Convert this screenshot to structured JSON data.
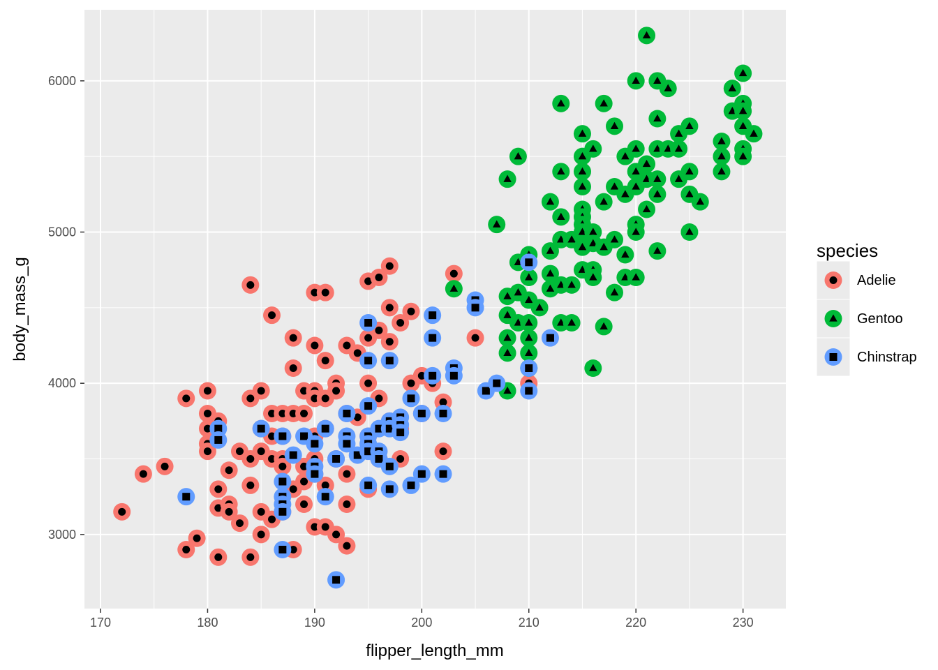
{
  "chart_data": {
    "type": "scatter",
    "xlabel": "flipper_length_mm",
    "ylabel": "body_mass_g",
    "xlim": [
      168.5,
      234
    ],
    "ylim": [
      2510,
      6470
    ],
    "x_ticks": [
      170,
      180,
      190,
      200,
      210,
      220,
      230
    ],
    "y_ticks": [
      3000,
      4000,
      5000,
      6000
    ],
    "x_tick_labels": [
      "170",
      "180",
      "190",
      "200",
      "210",
      "220",
      "230"
    ],
    "y_tick_labels": [
      "3000",
      "4000",
      "5000",
      "6000"
    ],
    "grid": true,
    "legend": {
      "title": "species",
      "position": "right"
    },
    "series": [
      {
        "name": "Adelie",
        "color": "#F8766D",
        "marker": "circle",
        "points": [
          [
            172,
            3150
          ],
          [
            174,
            3400
          ],
          [
            176,
            3450
          ],
          [
            178,
            3900
          ],
          [
            178,
            2900
          ],
          [
            179,
            2975
          ],
          [
            180,
            3950
          ],
          [
            180,
            3800
          ],
          [
            180,
            3700
          ],
          [
            180,
            3600
          ],
          [
            180,
            3550
          ],
          [
            181,
            3750
          ],
          [
            181,
            3300
          ],
          [
            181,
            3175
          ],
          [
            181,
            2850
          ],
          [
            182,
            3425
          ],
          [
            182,
            3200
          ],
          [
            182,
            3150
          ],
          [
            183,
            3550
          ],
          [
            183,
            3075
          ],
          [
            184,
            4650
          ],
          [
            184,
            3900
          ],
          [
            184,
            3500
          ],
          [
            184,
            3325
          ],
          [
            184,
            2850
          ],
          [
            185,
            3950
          ],
          [
            185,
            3700
          ],
          [
            185,
            3550
          ],
          [
            185,
            3150
          ],
          [
            185,
            3000
          ],
          [
            186,
            4450
          ],
          [
            186,
            3800
          ],
          [
            186,
            3650
          ],
          [
            186,
            3500
          ],
          [
            186,
            3100
          ],
          [
            187,
            3800
          ],
          [
            187,
            3650
          ],
          [
            187,
            3500
          ],
          [
            187,
            3450
          ],
          [
            187,
            3150
          ],
          [
            188,
            4300
          ],
          [
            188,
            4100
          ],
          [
            188,
            3800
          ],
          [
            188,
            3300
          ],
          [
            188,
            2900
          ],
          [
            189,
            3950
          ],
          [
            189,
            3800
          ],
          [
            189,
            3450
          ],
          [
            189,
            3350
          ],
          [
            189,
            3200
          ],
          [
            190,
            4600
          ],
          [
            190,
            4250
          ],
          [
            190,
            3950
          ],
          [
            190,
            3900
          ],
          [
            190,
            3650
          ],
          [
            190,
            3500
          ],
          [
            190,
            3400
          ],
          [
            190,
            3050
          ],
          [
            191,
            4600
          ],
          [
            191,
            4150
          ],
          [
            191,
            3900
          ],
          [
            191,
            3700
          ],
          [
            191,
            3325
          ],
          [
            191,
            3050
          ],
          [
            192,
            4000
          ],
          [
            192,
            3950
          ],
          [
            192,
            3500
          ],
          [
            192,
            3000
          ],
          [
            193,
            4250
          ],
          [
            193,
            3800
          ],
          [
            193,
            3400
          ],
          [
            193,
            3200
          ],
          [
            193,
            2925
          ],
          [
            194,
            4200
          ],
          [
            194,
            3775
          ],
          [
            195,
            4675
          ],
          [
            195,
            4300
          ],
          [
            195,
            4000
          ],
          [
            195,
            3650
          ],
          [
            195,
            3300
          ],
          [
            196,
            4700
          ],
          [
            196,
            4350
          ],
          [
            196,
            3900
          ],
          [
            196,
            3500
          ],
          [
            197,
            4775
          ],
          [
            197,
            4500
          ],
          [
            197,
            4275
          ],
          [
            197,
            3750
          ],
          [
            198,
            4400
          ],
          [
            198,
            3700
          ],
          [
            198,
            3500
          ],
          [
            199,
            4475
          ],
          [
            199,
            4000
          ],
          [
            200,
            4050
          ],
          [
            200,
            3800
          ],
          [
            201,
            4000
          ],
          [
            202,
            3875
          ],
          [
            202,
            3550
          ],
          [
            203,
            4725
          ],
          [
            205,
            4300
          ],
          [
            210,
            4000
          ]
        ]
      },
      {
        "name": "Gentoo",
        "color": "#00BA38",
        "marker": "triangle",
        "points": [
          [
            203,
            4625
          ],
          [
            207,
            5050
          ],
          [
            208,
            5350
          ],
          [
            208,
            4575
          ],
          [
            208,
            4450
          ],
          [
            208,
            4300
          ],
          [
            208,
            4200
          ],
          [
            208,
            3950
          ],
          [
            209,
            5500
          ],
          [
            209,
            4800
          ],
          [
            209,
            4600
          ],
          [
            209,
            4400
          ],
          [
            210,
            4850
          ],
          [
            210,
            4700
          ],
          [
            210,
            4550
          ],
          [
            210,
            4400
          ],
          [
            210,
            4300
          ],
          [
            210,
            4200
          ],
          [
            210,
            4100
          ],
          [
            211,
            4500
          ],
          [
            212,
            5200
          ],
          [
            212,
            4875
          ],
          [
            212,
            4725
          ],
          [
            212,
            4625
          ],
          [
            213,
            5850
          ],
          [
            213,
            5400
          ],
          [
            213,
            5100
          ],
          [
            213,
            4950
          ],
          [
            213,
            4650
          ],
          [
            213,
            4400
          ],
          [
            214,
            4950
          ],
          [
            214,
            4650
          ],
          [
            214,
            4400
          ],
          [
            215,
            5650
          ],
          [
            215,
            5500
          ],
          [
            215,
            5400
          ],
          [
            215,
            5300
          ],
          [
            215,
            5150
          ],
          [
            215,
            5100
          ],
          [
            215,
            5050
          ],
          [
            215,
            5000
          ],
          [
            215,
            4900
          ],
          [
            215,
            4750
          ],
          [
            216,
            5550
          ],
          [
            216,
            5000
          ],
          [
            216,
            4925
          ],
          [
            216,
            4750
          ],
          [
            216,
            4700
          ],
          [
            216,
            4100
          ],
          [
            217,
            5850
          ],
          [
            217,
            5200
          ],
          [
            217,
            4900
          ],
          [
            217,
            4375
          ],
          [
            218,
            5700
          ],
          [
            218,
            5300
          ],
          [
            218,
            4950
          ],
          [
            218,
            4600
          ],
          [
            219,
            5500
          ],
          [
            219,
            5250
          ],
          [
            219,
            4850
          ],
          [
            219,
            4700
          ],
          [
            220,
            6000
          ],
          [
            220,
            5550
          ],
          [
            220,
            5400
          ],
          [
            220,
            5300
          ],
          [
            220,
            5050
          ],
          [
            220,
            5000
          ],
          [
            220,
            4700
          ],
          [
            221,
            6300
          ],
          [
            221,
            5450
          ],
          [
            221,
            5350
          ],
          [
            221,
            5150
          ],
          [
            222,
            6000
          ],
          [
            222,
            5750
          ],
          [
            222,
            5550
          ],
          [
            222,
            5350
          ],
          [
            222,
            5250
          ],
          [
            222,
            4875
          ],
          [
            223,
            5950
          ],
          [
            223,
            5550
          ],
          [
            224,
            5650
          ],
          [
            224,
            5550
          ],
          [
            224,
            5350
          ],
          [
            225,
            5700
          ],
          [
            225,
            5400
          ],
          [
            225,
            5250
          ],
          [
            225,
            5000
          ],
          [
            226,
            5200
          ],
          [
            228,
            5600
          ],
          [
            228,
            5500
          ],
          [
            228,
            5400
          ],
          [
            229,
            5950
          ],
          [
            229,
            5800
          ],
          [
            230,
            6050
          ],
          [
            230,
            5850
          ],
          [
            230,
            5800
          ],
          [
            230,
            5700
          ],
          [
            230,
            5550
          ],
          [
            230,
            5500
          ],
          [
            231,
            5650
          ]
        ]
      },
      {
        "name": "Chinstrap",
        "color": "#619CFF",
        "marker": "square",
        "points": [
          [
            178,
            3250
          ],
          [
            181,
            3700
          ],
          [
            181,
            3625
          ],
          [
            185,
            3700
          ],
          [
            187,
            3650
          ],
          [
            187,
            3350
          ],
          [
            187,
            3250
          ],
          [
            187,
            3200
          ],
          [
            187,
            3150
          ],
          [
            187,
            2900
          ],
          [
            188,
            3525
          ],
          [
            189,
            3650
          ],
          [
            190,
            3600
          ],
          [
            190,
            3450
          ],
          [
            190,
            3400
          ],
          [
            191,
            3700
          ],
          [
            191,
            3250
          ],
          [
            192,
            3500
          ],
          [
            192,
            2700
          ],
          [
            193,
            3800
          ],
          [
            193,
            3650
          ],
          [
            193,
            3600
          ],
          [
            194,
            3525
          ],
          [
            195,
            4400
          ],
          [
            195,
            4150
          ],
          [
            195,
            3850
          ],
          [
            195,
            3650
          ],
          [
            195,
            3600
          ],
          [
            195,
            3550
          ],
          [
            195,
            3325
          ],
          [
            196,
            3700
          ],
          [
            196,
            3550
          ],
          [
            196,
            3500
          ],
          [
            197,
            4150
          ],
          [
            197,
            3750
          ],
          [
            197,
            3700
          ],
          [
            197,
            3450
          ],
          [
            197,
            3300
          ],
          [
            198,
            3775
          ],
          [
            198,
            3725
          ],
          [
            198,
            3675
          ],
          [
            199,
            3900
          ],
          [
            199,
            3325
          ],
          [
            200,
            3800
          ],
          [
            200,
            3400
          ],
          [
            201,
            4450
          ],
          [
            201,
            4300
          ],
          [
            201,
            4050
          ],
          [
            202,
            3800
          ],
          [
            202,
            3400
          ],
          [
            203,
            4100
          ],
          [
            203,
            4050
          ],
          [
            205,
            4550
          ],
          [
            205,
            4500
          ],
          [
            206,
            3950
          ],
          [
            207,
            4000
          ],
          [
            210,
            4800
          ],
          [
            210,
            4100
          ],
          [
            210,
            3950
          ],
          [
            212,
            4300
          ]
        ]
      }
    ]
  }
}
